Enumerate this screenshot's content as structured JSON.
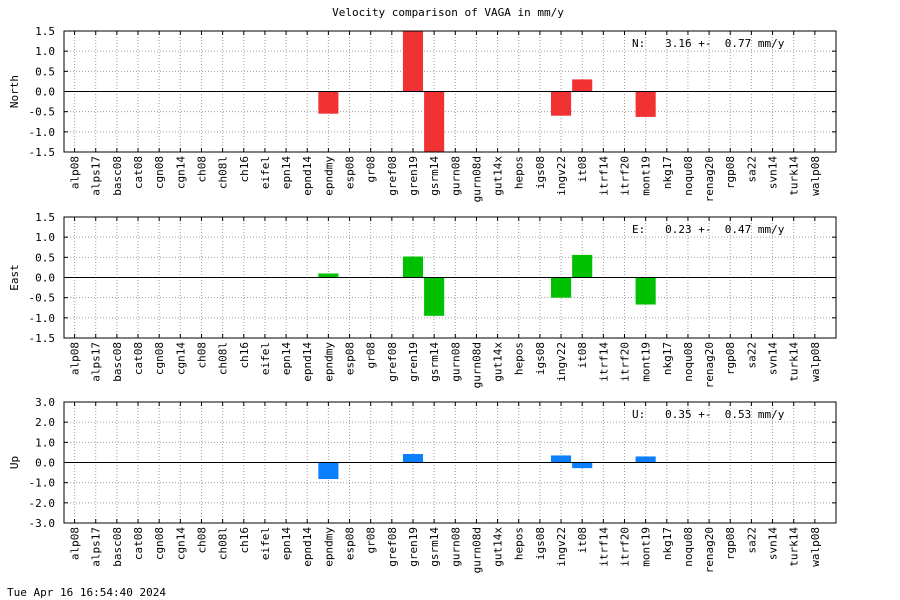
{
  "title": "Velocity comparison of VAGA in mm/y",
  "footer_timestamp": "Tue Apr 16 16:54:40 2024",
  "chart_data": [
    {
      "type": "bar",
      "ylabel": "North",
      "annotation": "N:   3.16 +-  0.77 mm/y",
      "color": "#f03232",
      "ylim": [
        -1.5,
        1.5
      ],
      "yticks": [
        "1.5",
        "1.0",
        "0.5",
        "0.0",
        "-0.5",
        "-1.0",
        "-1.5"
      ],
      "categories": [
        "alp08",
        "alps17",
        "basc08",
        "cat08",
        "cgn08",
        "cgn14",
        "ch08",
        "ch08l",
        "ch16",
        "eifel",
        "epn14",
        "epnd14",
        "epndmy",
        "esp08",
        "gr08",
        "gref08",
        "gren19",
        "gsrm14",
        "gurn08",
        "gurn08d",
        "gut14x",
        "hepos",
        "igs08",
        "ingv22",
        "it08",
        "itrf14",
        "itrf20",
        "mont19",
        "nkg17",
        "noqu08",
        "renag20",
        "rgp08",
        "sa22",
        "svn14",
        "turk14",
        "walp08"
      ],
      "values": [
        null,
        null,
        null,
        null,
        null,
        null,
        null,
        null,
        null,
        null,
        null,
        null,
        -0.55,
        null,
        null,
        null,
        1.5,
        -1.5,
        null,
        null,
        null,
        null,
        null,
        -0.6,
        0.3,
        null,
        null,
        -0.63,
        null,
        null,
        null,
        null,
        null,
        null,
        null,
        null
      ]
    },
    {
      "type": "bar",
      "ylabel": "East",
      "annotation": "E:   0.23 +-  0.47 mm/y",
      "color": "#00c000",
      "ylim": [
        -1.5,
        1.5
      ],
      "yticks": [
        "1.5",
        "1.0",
        "0.5",
        "0.0",
        "-0.5",
        "-1.0",
        "-1.5"
      ],
      "categories": [
        "alp08",
        "alps17",
        "basc08",
        "cat08",
        "cgn08",
        "cgn14",
        "ch08",
        "ch08l",
        "ch16",
        "eifel",
        "epn14",
        "epnd14",
        "epndmy",
        "esp08",
        "gr08",
        "gref08",
        "gren19",
        "gsrm14",
        "gurn08",
        "gurn08d",
        "gut14x",
        "hepos",
        "igs08",
        "ingv22",
        "it08",
        "itrf14",
        "itrf20",
        "mont19",
        "nkg17",
        "noqu08",
        "renag20",
        "rgp08",
        "sa22",
        "svn14",
        "turk14",
        "walp08"
      ],
      "values": [
        null,
        null,
        null,
        null,
        null,
        null,
        null,
        null,
        null,
        null,
        null,
        null,
        0.1,
        null,
        null,
        null,
        0.52,
        -0.95,
        null,
        null,
        null,
        null,
        null,
        -0.5,
        0.56,
        null,
        null,
        -0.67,
        null,
        null,
        null,
        null,
        null,
        null,
        null,
        null
      ]
    },
    {
      "type": "bar",
      "ylabel": "Up",
      "annotation": "U:   0.35 +-  0.53 mm/y",
      "color": "#0a80ff",
      "ylim": [
        -3.0,
        3.0
      ],
      "yticks": [
        "3.0",
        "2.0",
        "1.0",
        "0.0",
        "-1.0",
        "-2.0",
        "-3.0"
      ],
      "categories": [
        "alp08",
        "alps17",
        "basc08",
        "cat08",
        "cgn08",
        "cgn14",
        "ch08",
        "ch08l",
        "ch16",
        "eifel",
        "epn14",
        "epnd14",
        "epndmy",
        "esp08",
        "gr08",
        "gref08",
        "gren19",
        "gsrm14",
        "gurn08",
        "gurn08d",
        "gut14x",
        "hepos",
        "igs08",
        "ingv22",
        "it08",
        "itrf14",
        "itrf20",
        "mont19",
        "nkg17",
        "noqu08",
        "renag20",
        "rgp08",
        "sa22",
        "svn14",
        "turk14",
        "walp08"
      ],
      "values": [
        null,
        null,
        null,
        null,
        null,
        null,
        null,
        null,
        null,
        null,
        null,
        null,
        -0.82,
        null,
        null,
        null,
        0.42,
        null,
        null,
        null,
        null,
        null,
        null,
        0.35,
        -0.28,
        null,
        null,
        0.3,
        null,
        null,
        null,
        null,
        null,
        null,
        null,
        null
      ]
    }
  ]
}
